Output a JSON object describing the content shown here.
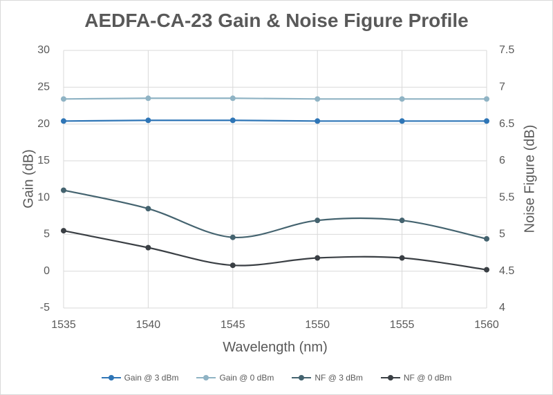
{
  "chart_data": {
    "type": "line",
    "title": "AEDFA-CA-23 Gain & Noise Figure Profile",
    "xlabel": "Wavelength (nm)",
    "ylabel": "Gain (dB)",
    "y2label": "Noise Figure (dB)",
    "x": [
      1535,
      1540,
      1545,
      1550,
      1555,
      1560
    ],
    "xlim": [
      1535,
      1560
    ],
    "xticks": [
      "1535",
      "1540",
      "1545",
      "1550",
      "1555",
      "1560"
    ],
    "ylim": [
      -5,
      30
    ],
    "yticks": [
      "30",
      "25",
      "20",
      "15",
      "10",
      "5",
      "0",
      "-5"
    ],
    "y2lim": [
      4,
      7.5
    ],
    "y2ticks": [
      "7.5",
      "7",
      "6.5",
      "6",
      "5.5",
      "5",
      "4.5",
      "4"
    ],
    "grid": true,
    "legend_position": "bottom",
    "series": [
      {
        "name": "Gain @ 3 dBm",
        "axis": "left",
        "color": "#2e75b6",
        "smooth": false,
        "values": [
          20.4,
          20.5,
          20.5,
          20.4,
          20.4,
          20.4
        ]
      },
      {
        "name": "Gain @ 0 dBm",
        "axis": "left",
        "color": "#8fb3c4",
        "smooth": false,
        "values": [
          23.4,
          23.5,
          23.5,
          23.4,
          23.4,
          23.4
        ]
      },
      {
        "name": "NF @ 3 dBm",
        "axis": "right",
        "color": "#44636f",
        "smooth": true,
        "values": [
          5.6,
          5.35,
          4.96,
          5.19,
          5.19,
          4.94
        ]
      },
      {
        "name": "NF @ 0 dBm",
        "axis": "right",
        "color": "#3a3f44",
        "smooth": true,
        "values": [
          5.05,
          4.82,
          4.58,
          4.68,
          4.68,
          4.52
        ]
      }
    ]
  }
}
